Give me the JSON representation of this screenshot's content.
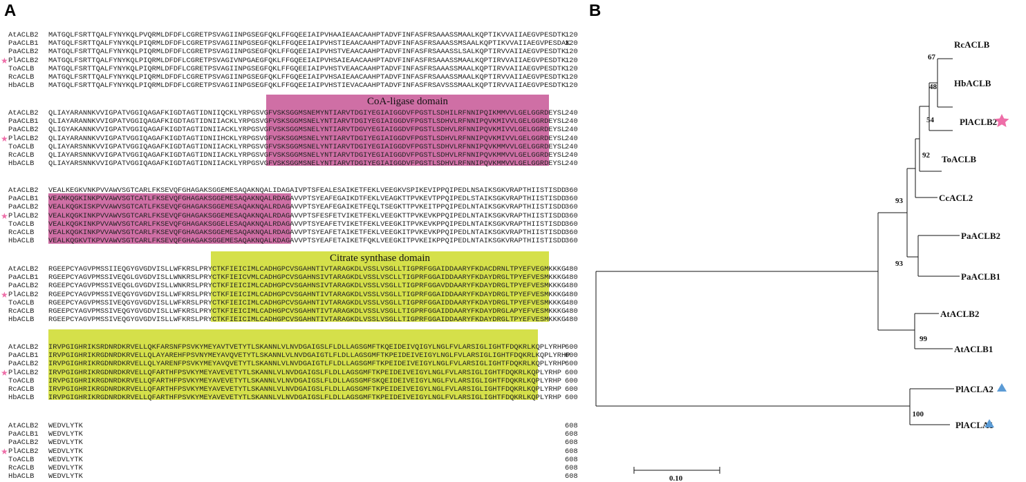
{
  "panels": [
    "A",
    "B"
  ],
  "alignment": {
    "names": [
      "AtACLB2",
      "PaACLB1",
      "PaACLB2",
      "PlACLB2",
      "ToACLB",
      "RcACLB",
      "HbACLB"
    ],
    "starred": "PlACLB2",
    "domains": {
      "coa": "CoA-ligase domain",
      "citrate": "Citrate synthase domain"
    },
    "blocks": [
      {
        "end": "120",
        "rows": [
          "MATGQLFSRTTQALFYNYKQLPVQRMLDFDFLCGRETPSVAGIINPGSEGFQKLFFGQEEIAIPVHAAIEAACAAHPTADVFINFASFRSAAASSMAALKQPTIKVVAIIAEGVPESDTK",
          "MATGQLFSRTTQALFYNYKQLPIQRMLDFDFLCGRETPSVAGIINPGSEGFQKLFFGQEEIAIPVHSTIEAACAAHPTADVFINFASFRSAAASSMSAALKQPTIKVVAIIAEGVPESDAK",
          "MATGQLFSRTTQALFYNYKQLPIQRMLDFDFLCGRETPSVAGIINPGSEGFQKLFFGQEEIAIPVHSTVEAACAAHPTADVFINFASFRSAAASSLSALKQPTIRVVAIIAEGVPESDTK",
          "MATGQLFSRTTQALFYNYKQLPIQRMLDFDFLCGRETPSVAGIVNPGAEGFQKLFFGQEEIAIPVHSAIEAACAAHPTADVFINFASFRSAAASSMAALKQPTIRVVAIIAEGVPESDTK",
          "MATGQLFSRTTQALFYNYKQLPIQRMLDFDFLCGRETPSVAGIINPGSEGFQKLFFGQEEIAIPVHSTVEAACAAHPTADVFINFASFRSAAASSMAALKQPTIRVVAIIAEGVPESDTK",
          "MATGQLFSRTTQALFYNYKQLPIQRMLDFDFLCGRETPSVAGIINPGSEGFQKLFFGQEEIAIPVHSAIEAACAAHPTADVFINFASFRSAAASSMAALKQPTIRVVAIIAEGVPESDTK",
          "MATGQLFSRTTQALFYNYKQLPIQRMLDFDFLCGRETPSVAGIINPGSEGFQKLFFGQEEIAIPVHSTIEVACAAHPTADVFINFASFRSAVSSSMAALKQPTIRVVAIIAEGVPESDTK"
        ]
      },
      {
        "end": "240",
        "rows": [
          "QLIAYARANNKVVIGPATVGGIQAGAFKIGDTAGTIDNIIQCKLYRPGSVGFVSKSGGMSNEMYNTIARVTDGIYEGIAIGGDVFPGSTLSDHILRFNNIPQIKMMVVLGELGGRDEYSL",
          "QLIAYARANNKVVIGPATVGGIQAGAFKIGDTAGTIDNIIACKLYRPGSVGFVSKSGGMSNELYNTIARVTDGIYEGIAIGGDVFPGSTLSDHVLRFNNIPQVKMIVVLGELGGRDEYSL",
          "QLIGYAKANNKVVIGPATVGGIQAGAFKIGDTAGTIDNIIACKLYRPGSVGFVSKSGGMSNELYNTIARVTDGVYEGIAIGGDVFPGSTLSDHVLRFNNIPQVKMIVVLGELGGRDEYSL",
          "QLIAYARANNKVVIGPATVGGIQAGAFKIGDTAGTIDNIIHCKLYRPGSVGFVSKSGGMSNELYNTIARVTDGIYEGIAIGGDVFPGSTLSDHVLRFNNIPQVKMIVVLGELGGRDEYSL",
          "QLIAYARSNNKVVIGPATVGGIQAGAFKIGDTAGTIDNIIACKLYRPGSVGFVSKSGGMSNELYNTIARVTDGIYEGIAIGGDVFPGSTLSDHVLRFNNIPQVKMMVVLGELGGRDEYSL",
          "QLIAYARSNNKVVIGPATVGGIQAGAFKIGDTAGTIDNIIACKLYRPGSVGFVSKSGGMSNELYNTIARVTDGIYEGIAIGGDVFPGSTLSDHVLRFNNIPQVKMMVVLGELGGRDEYSL",
          "QLIAYARSNNKVVIGPATVGGIQAGAFKIGDTAGTIDNIIACKLYRPGSVGFVSKSGGMSNELYNTIARVTDGIYEGIAIGGDVFPGSTLSDHVLRFNNIPQVKMMVVLGELGGRDEYSL"
        ]
      },
      {
        "end": "360",
        "rows": [
          "VEALKEGKVNKPVVAWVSGTCARLFKSEVQFGHAGAKSGGEMESAQAKNQALIDAGAIVPTSFEALESAIKETFEKLVEEGKVSPIKEVIPPQIPEDLNSAIKSGKVRAPTHIISTISDD",
          "VEAMKQGKINKPVVAWVSGTCATLFKSEVQFGHAGAKSGGEMESAQAKNQALRDAGAVVPTSYEAFEGAIKDTFEKLVEAGKTTPVKEVTPPQIPEDLSTAIKSGKVRAPTHIISTISDD",
          "VEALKQGKISKPVVAWVSGTCATLFKSEVQFGHAGAKSGGEMESAQAKNQALRDAGAVVPTSYEAFEGAIKETFEQLTSEGKTTPVKEITPPQIPEDLNTAIKSGKVRAPTHIISTISDD",
          "VEALKQGKINKPVVAWVSGTCARLFKSEVQFGHAGAKSGGEMESAQAKNQALRDAGAVVPTSFESFETVIKETFEKLVEEGKTTPVKEVKPPQIPEDLNTAIKSGKVRAPTHIISTISDD",
          "VEALKQGKINKPVVAWVSGTCARLFKSEVQFGHAGAKSGGELESAQAKNQALRDAGAVVPTSYEAFETVIKETFEKLVEEGKITPVKEVKPPQIPEDLNTAIKSGKVRAPTHIISTISDD",
          "VEALKQGKINKPVVAWVSGTCARLFKSEVQFGHAGAKSGGEMESAQAKNQALRDAGAVVPTSYEAFETAIKETFEKLVEEGKITPVKEVKPPQIPEDLNTAIKSGKVRAPTHIISTISDD",
          "VEALKQGKVTKPVVAWVSGTCARLFKSEVQFGHAGAKSGGEMESAQAKNQALKDAGAVVPTSYEAFETAIKETFQKLVEEGKITPVKEIKPPQIPEDLNTAIKSGKVRAPTHIISTISDD"
        ]
      },
      {
        "end": "480",
        "rows": [
          "RGEEPCYAGVPMSSIIEQGYGVGDVISLLWFKRSLPRYCTKFIEICIMLCADHGPCVSGAHNTIVTARAGKDLVSSLVSGLLTIGPRFGGAIDDAARYFKDACDRNLTPYEFVEGMKKKG",
          "RGEEPCYAGVPMSSIVEQGLGVGDVISLLWNKRSLPRYCTKFIEICVMLCADHGPCVSGAHNSIVTARAGKDLVSSLVSCLLTIGPRFGGAIDDAARYFKDAYDRGLTPYEFVESMKKKG",
          "RGEEPCYAGVPMSSIVEQGLGVGDVISLLWNKRSLPRYCTKFIEICIMLCADHGPCVSGAHNSIVTARAGKDLVSSLVSGLLTIGPRFGGAVDDAARYFKDAYDRGLTPYEFVESMKKKG",
          "RGEEPCYAGVPMSSIVEQGYGVGDVISLLWFKRSLPRYCTKFIEICIMLCADHGPCVSGAHNTIVTARAGKDLVSSLVSGLLTIGPRFGGAIDDAARYFKDAYDRGLTPYEFVESMKKKG",
          "RGEEPCYAGVPMSSIVEQGYGVGDVISLLWFKRSLPRYCTKFIEICIMLCADHGPCVSGAHNTIVTARAGKDLVSSLVSGLLTIGPRFGGAIDDAARYFKDAYDRGLTPYEFVESMKKKG",
          "RGEEPCYAGVPMSSIVEQGYGVGDVISLLWFKRSLPRYCTKFIEICIMLCADHGPCVSGAHNTIVTARAGKDLVSSLVSGLLTIGPRFGGAIDDAARYFKDAYDRGLAPYEFVESMKKKG",
          "RGEEPCYAGVPMSSIVEQGYGVGDVISLLWFKRSLPRYCTKFIEICIMLCADHGPCVSGAHNTIVTARAGKDLVSSLVSGLLTIGPRFGGAIDDAARYFKDAYDRGLTPYEFVESMKKKG"
        ]
      },
      {
        "end": "600",
        "rows": [
          "IRVPGIGHRIKSRDNRDKRVELLQKFARSNFPSVKYMEYAVTVETYTLSKANNLVLNVDGAIGSLFLDLLAGSGMFTKQEIDEIVQIGYLNGLFVLARSIGLIGHTFDQKRLKQPLYRHP",
          "IRVPGIGHRIKRGDNRDKRVELLQLAYAREHFPSVNYMEYAVQVETYTLSKANNLVLNVDGAIGTLFLDLLAGSGMFTKPEIDEIVEIGYLNGLFVLARSIGLIGHTFDQKRLKQPLYRHP",
          "IRVPGIGHRIKRGDNRDKRVELLQLYARENFPSVKYMEYAVQVETYTLSKANNLVLNVDGAIGTLFLDLLAGSGMFTKPEIDEIVEIGYLNGLFVLARSIGLIGHTFDQKRLKQPLYRHP",
          "IRVPGIGHRIKRGDNRDKRVELLQFARTHFPSVKYMEYAVEVETYTLSKANNLVLNVDGAIGSLFLDLLAGSGMFTKPEIDEIVEIGYLNGLFVLARSIGLIGHTFDQKRLKQPLYRHP",
          "IRVPGIGHRIKRGDNRDKRVELLQFARTHFPSVKYMEYAVEVETYTLSKANNLVLNVDGAIGSLFLDLLAGSGMFSKQEIDEIVEIGYLNGLFVLARSIGLIGHTFDQKRLKQPLYRHP",
          "IRVPGIGHRIKRGDNRDKRVELLQFARTHFPSVKYMEYAVEVETYTLSKANNLVLNVDGAIGSLFLDLLAGSGMFTKPEIDEIVEIGYLNGLFVLARSIGLIGHTFDQKRLKQPLYRHP",
          "IRVPGIGHRIKRGDNRDKRVELLQFARTHFPSVKYMEYAVEVETYTLSKANNLVLNVDGAIGSLFLDLLAGSGMFTKPEIDEIVEIGYLNGLFVLARSIGLIGHTFDQKRLKQPLYRHP"
        ]
      },
      {
        "end": "608",
        "rows": [
          "WEDVLYTK",
          "WEDVLYTK",
          "WEDVLYTK",
          "WEDVLYTK",
          "WEDVLYTK",
          "WEDVLYTK",
          "WEDVLYTK"
        ]
      }
    ]
  },
  "tree": {
    "leaves": [
      "RcACLB",
      "HbACLB",
      "PlACLB2",
      "ToACLB",
      "CcACL2",
      "PaACLB2",
      "PaACLB1",
      "AtACLB2",
      "AtACLB1",
      "PlACLA2",
      "PlACLA1"
    ],
    "bootstrap": [
      "67",
      "48",
      "54",
      "92",
      "93",
      "93",
      "99",
      "100"
    ],
    "scale": "0.10",
    "star_color": "#ee6ea8",
    "triangle_color": "#5b9bd5"
  }
}
